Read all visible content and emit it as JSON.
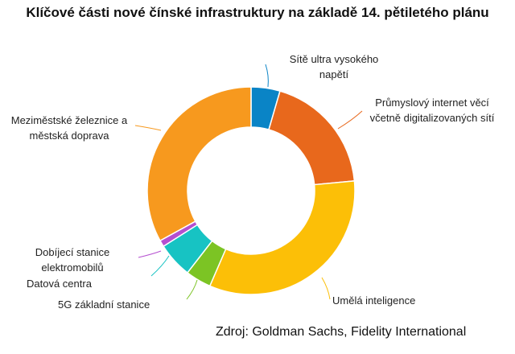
{
  "chart_data": {
    "type": "pie",
    "donut": true,
    "title": "Klíčové části nové čínské infrastruktury na základě 14. pětiletého plánu",
    "source": "Zdroj: Goldman Sachs, Fidelity International",
    "unit": "%",
    "slices": [
      {
        "label": "Sítě ultra vysokého napětí",
        "value": 4.5,
        "color": "#0a84c6"
      },
      {
        "label": "Průmyslový internet věcí včetně digitalizovaných sítí",
        "value": 19,
        "color": "#e8681c"
      },
      {
        "label": "Umělá inteligence",
        "value": 33,
        "color": "#fcbf07"
      },
      {
        "label": "5G základní stanice",
        "value": 4,
        "color": "#7cc424"
      },
      {
        "label": "Datová centra",
        "value": 5.5,
        "color": "#17c3c3"
      },
      {
        "label": "Dobíjecí stanice elektromobilů",
        "value": 1,
        "color": "#b54fd0"
      },
      {
        "label": "Meziměstské železnice a městská doprava",
        "value": 33,
        "color": "#f7991e"
      }
    ]
  }
}
